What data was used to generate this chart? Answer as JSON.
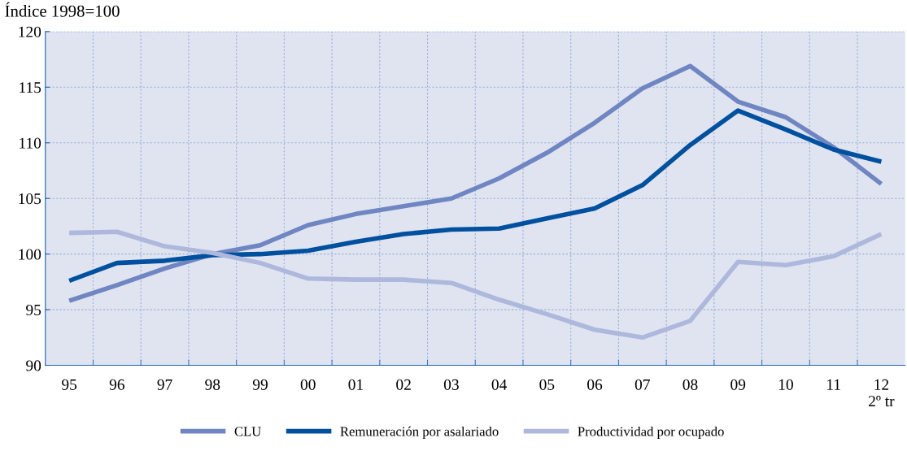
{
  "chart_data": {
    "type": "line",
    "ylabel": "Índice 1998=100",
    "categories": [
      "95",
      "96",
      "97",
      "98",
      "99",
      "00",
      "01",
      "02",
      "03",
      "04",
      "05",
      "06",
      "07",
      "08",
      "09",
      "10",
      "11",
      "12\n2º tr"
    ],
    "series": [
      {
        "name": "CLU",
        "color": "#6f86c2",
        "values": [
          95.8,
          97.2,
          98.7,
          100.0,
          100.8,
          102.6,
          103.6,
          104.3,
          105.0,
          106.8,
          109.1,
          111.8,
          114.9,
          116.9,
          113.7,
          112.3,
          109.6,
          106.3
        ]
      },
      {
        "name": "Remuneración por asalariado",
        "color": "#0050a0",
        "values": [
          97.6,
          99.2,
          99.4,
          99.9,
          100.0,
          100.3,
          101.1,
          101.8,
          102.2,
          102.3,
          103.2,
          104.1,
          106.2,
          109.8,
          112.9,
          111.2,
          109.4,
          108.3
        ]
      },
      {
        "name": "Productividad por ocupado",
        "color": "#adb8dc",
        "values": [
          101.9,
          102.0,
          100.7,
          100.1,
          99.2,
          97.8,
          97.7,
          97.7,
          97.4,
          95.9,
          94.6,
          93.2,
          92.5,
          94.0,
          99.3,
          99.0,
          99.8,
          101.8
        ]
      }
    ],
    "ylim": [
      90,
      120
    ],
    "yticks": [
      90,
      95,
      100,
      105,
      110,
      115,
      120
    ],
    "grid": true,
    "legend": "bottom",
    "marker": "none",
    "line_style": "solid"
  }
}
